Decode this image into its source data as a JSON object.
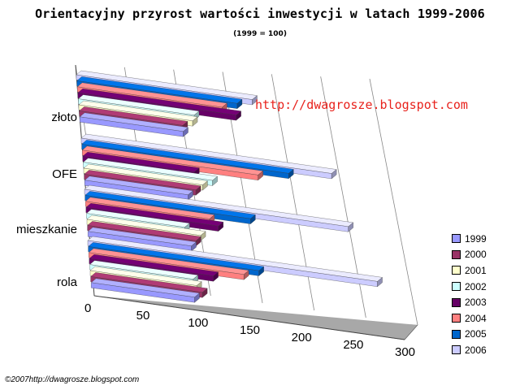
{
  "title": "Orientacyjny przyrost wartości inwestycji w latach 1999-2006",
  "subtitle": "(1999 = 100)",
  "watermark": "http://dwagrosze.blogspot.com",
  "footer": "©2007http://dwagrosze.blogspot.com",
  "chart_data": {
    "type": "bar",
    "orientation": "horizontal",
    "style": "3d",
    "categories": [
      "złoto",
      "OFE",
      "mieszkanie",
      "rola"
    ],
    "x_ticks": [
      "0",
      "50",
      "100",
      "150",
      "200",
      "250",
      "300"
    ],
    "xlim": [
      0,
      300
    ],
    "grid": true,
    "legend_position": "bottom-right",
    "series": [
      {
        "name": "1999",
        "color": "#9999ff",
        "values": [
          100,
          100,
          100,
          100
        ]
      },
      {
        "name": "2000",
        "color": "#993366",
        "values": [
          100,
          108,
          105,
          108
        ]
      },
      {
        "name": "2001",
        "color": "#ffffcc",
        "values": [
          110,
          115,
          110,
          103
        ]
      },
      {
        "name": "2002",
        "color": "#ccffff",
        "values": [
          112,
          125,
          95,
          100
        ]
      },
      {
        "name": "2003",
        "color": "#660066",
        "values": [
          153,
          108,
          128,
          120
        ]
      },
      {
        "name": "2004",
        "color": "#ff8080",
        "values": [
          140,
          170,
          120,
          150
        ]
      },
      {
        "name": "2005",
        "color": "#0066cc",
        "values": [
          155,
          200,
          160,
          165
        ]
      },
      {
        "name": "2006",
        "color": "#ccccff",
        "values": [
          170,
          242,
          255,
          280
        ]
      }
    ]
  }
}
